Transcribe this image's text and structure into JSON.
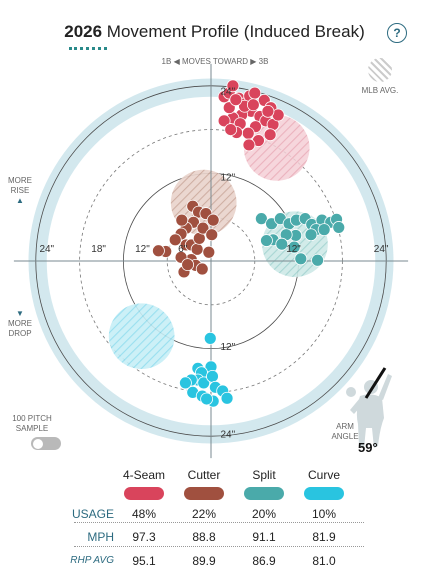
{
  "header": {
    "title_year": "2026",
    "title_rest": "Movement Profile (Induced Break)",
    "help_icon": "?"
  },
  "direction": {
    "left_label": "1B",
    "center_label": "MOVES TOWARD",
    "right_label": "3B"
  },
  "legend": {
    "mlb_avg_label": "MLB AVG."
  },
  "side_labels": {
    "more_rise_1": "MORE",
    "more_rise_2": "RISE",
    "more_drop_1": "MORE",
    "more_drop_2": "DROP"
  },
  "sample": {
    "label_1": "100 PITCH",
    "label_2": "SAMPLE",
    "toggle_on": false
  },
  "arm_angle": {
    "label_1": "ARM",
    "label_2": "ANGLE",
    "value": "59°"
  },
  "chart_data": {
    "type": "scatter",
    "title": "2026 Movement Profile (Induced Break)",
    "xlim": [
      -30,
      30
    ],
    "ylim": [
      -30,
      30
    ],
    "ring_labels": [
      "12\"",
      "24\""
    ],
    "tick_labels": {
      "x_left": [
        "24\"",
        "18\"",
        "12\"",
        "6\""
      ],
      "x_right": [
        "12\"",
        "24\""
      ],
      "y_top": [
        "24\"",
        "12\""
      ],
      "y_bottom": [
        "12\"",
        "24\""
      ]
    },
    "series": [
      {
        "name": "4-Seam",
        "color": "#d9445c",
        "mlb_avg": {
          "x": 9,
          "y": 15.5,
          "r": 4.5
        },
        "points": [
          [
            1.8,
            22.5
          ],
          [
            2.5,
            23
          ],
          [
            3,
            24
          ],
          [
            3.8,
            22.3
          ],
          [
            4.5,
            21.5
          ],
          [
            5.3,
            22.6
          ],
          [
            6,
            23
          ],
          [
            7.3,
            22
          ],
          [
            8.2,
            21
          ],
          [
            5.5,
            20.5
          ],
          [
            6.7,
            19.8
          ],
          [
            4.2,
            20
          ],
          [
            3,
            19.6
          ],
          [
            2.5,
            21
          ],
          [
            7.5,
            19.2
          ],
          [
            8.5,
            18.7
          ],
          [
            6.1,
            18.4
          ],
          [
            5.1,
            17.5
          ],
          [
            4,
            18.8
          ],
          [
            1.8,
            19.2
          ],
          [
            9.2,
            20
          ],
          [
            7.8,
            20.5
          ],
          [
            3.5,
            17.6
          ],
          [
            6.5,
            16.5
          ],
          [
            5.2,
            15.9
          ],
          [
            8.1,
            17.3
          ],
          [
            4.6,
            21.2
          ],
          [
            3.4,
            22.1
          ],
          [
            5.8,
            21.4
          ],
          [
            2.7,
            18
          ]
        ]
      },
      {
        "name": "Cutter",
        "color": "#a0503f",
        "mlb_avg": {
          "x": -1,
          "y": 8,
          "r": 4.5
        },
        "points": [
          [
            -2.5,
            7.5
          ],
          [
            -1.7,
            6.7
          ],
          [
            -0.7,
            6.5
          ],
          [
            0.3,
            5.6
          ],
          [
            -2.4,
            5.3
          ],
          [
            -3.4,
            4.5
          ],
          [
            -4.1,
            3.7
          ],
          [
            -4.9,
            2.9
          ],
          [
            -3.4,
            2.2
          ],
          [
            -2.7,
            2.2
          ],
          [
            -1.9,
            1.6
          ],
          [
            -0.3,
            1.2
          ],
          [
            -2.7,
            0.2
          ],
          [
            -4.1,
            0.5
          ],
          [
            -6.2,
            1.3
          ],
          [
            -7.2,
            1.4
          ],
          [
            -2.1,
            -0.6
          ],
          [
            -1.2,
            -1.1
          ],
          [
            -3.7,
            -1.5
          ],
          [
            -1.6,
            3.1
          ],
          [
            -4,
            5.6
          ],
          [
            -1.1,
            4.5
          ],
          [
            0.1,
            3.6
          ],
          [
            -3.2,
            -0.5
          ]
        ]
      },
      {
        "name": "Split",
        "color": "#4aaaaa",
        "mlb_avg": {
          "x": 11.5,
          "y": 2.3,
          "r": 4.5
        },
        "points": [
          [
            6.9,
            5.8
          ],
          [
            8.3,
            5.1
          ],
          [
            9.5,
            5.8
          ],
          [
            10.7,
            5.1
          ],
          [
            11.7,
            5.6
          ],
          [
            12.9,
            5.8
          ],
          [
            13.8,
            5
          ],
          [
            15.2,
            5.6
          ],
          [
            16.4,
            5.3
          ],
          [
            17.2,
            5.7
          ],
          [
            17.5,
            4.6
          ],
          [
            14.4,
            4.3
          ],
          [
            13.7,
            3.6
          ],
          [
            11.6,
            3.5
          ],
          [
            10.3,
            3.6
          ],
          [
            8.5,
            2.9
          ],
          [
            7.6,
            2.8
          ],
          [
            11.4,
            1.9
          ],
          [
            15.5,
            4.3
          ],
          [
            9.7,
            2.3
          ],
          [
            12.3,
            0.3
          ],
          [
            14.6,
            0.1
          ]
        ]
      },
      {
        "name": "Curve",
        "color": "#29c4e0",
        "mlb_avg": {
          "x": -9.5,
          "y": -10.3,
          "r": 4.5
        },
        "points": [
          [
            -1.8,
            -14.7
          ],
          [
            0,
            -14.5
          ],
          [
            -1.3,
            -15.3
          ],
          [
            -1.8,
            -16.3
          ],
          [
            -1,
            -16.7
          ],
          [
            0.2,
            -15.8
          ],
          [
            -2.7,
            -16.3
          ],
          [
            -3.5,
            -16.7
          ],
          [
            -2.5,
            -18
          ],
          [
            0.6,
            -17.3
          ],
          [
            -1.2,
            -18.5
          ],
          [
            0.3,
            -19.2
          ],
          [
            -0.6,
            -18.9
          ],
          [
            -0.1,
            -10.6
          ],
          [
            1.6,
            -17.8
          ],
          [
            2.2,
            -18.8
          ]
        ]
      }
    ]
  },
  "table": {
    "rows": [
      {
        "label": "USAGE",
        "values": [
          "48%",
          "22%",
          "20%",
          "10%"
        ]
      },
      {
        "label": "MPH",
        "values": [
          "97.3",
          "88.8",
          "91.1",
          "81.9"
        ]
      },
      {
        "label": "RHP AVG",
        "values": [
          "95.1",
          "89.9",
          "86.9",
          "81.0"
        ]
      }
    ]
  }
}
